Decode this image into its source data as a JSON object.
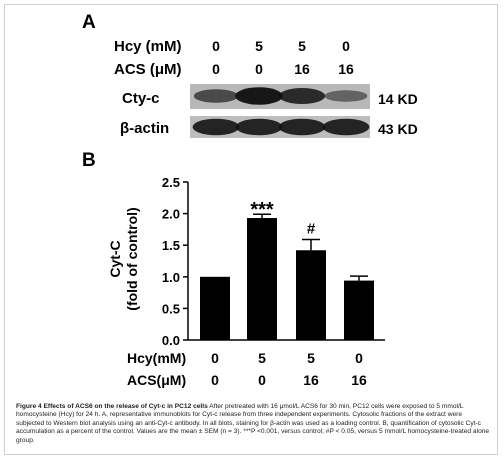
{
  "figure": {
    "panel_a_label": "A",
    "panel_b_label": "B",
    "blot": {
      "row_labels": {
        "hcy": "Hcy (mM)",
        "acs": "ACS (μM)"
      },
      "hcy_values": [
        "0",
        "5",
        "5",
        "0"
      ],
      "acs_values": [
        "0",
        "0",
        "16",
        "16"
      ],
      "bands": [
        {
          "name": "Cty-c",
          "size": "14 KD",
          "intensities": [
            0.55,
            0.95,
            0.8,
            0.35
          ]
        },
        {
          "name": "β-actin",
          "size": "43 KD",
          "intensities": [
            0.85,
            0.85,
            0.85,
            0.85
          ]
        }
      ]
    }
  },
  "chart_data": {
    "type": "bar",
    "categories": [
      "1",
      "2",
      "3",
      "4"
    ],
    "values": [
      1.0,
      1.93,
      1.42,
      0.94
    ],
    "errors": [
      0.0,
      0.06,
      0.17,
      0.07
    ],
    "annotations": [
      "",
      "***",
      "#",
      ""
    ],
    "ylabel_line1": "Cyt-C",
    "ylabel_line2": "(fold of control)",
    "ylim": [
      0.0,
      2.5
    ],
    "yticks": [
      "0.0",
      "0.5",
      "1.0",
      "1.5",
      "2.0",
      "2.5"
    ],
    "x_rows": [
      {
        "label": "Hcy(mM)",
        "values": [
          "0",
          "5",
          "5",
          "0"
        ]
      },
      {
        "label": "ACS(μM)",
        "values": [
          "0",
          "0",
          "16",
          "16"
        ]
      }
    ]
  },
  "caption": {
    "title": "Figure 4 Effects of ACS6 on the release of Cyt-c in PC12 cells",
    "text": "After pretreated with 16 μmol/L ACS6 for 30 min, PC12 cells were exposed to 5 mmol/L homocysteine (Hcy) for 24 h. A, representative immunoblots for Cyt-c release from three independent experiments. Cytosolic fractions of the extract were subjected to Western blot analysis using an anti-Cyt-c antibody. In all blots, staining for β-actin was used as a loading control. B, quantification of cytosolic Cyt-c accumulation as a percent of the control. Values are the mean ± SEM (n = 3). ***P <0.001, versus control; #P < 0.05, versus 5 mmol/L homocysteine-treated alone group."
  },
  "colors": {
    "bar": "#000000",
    "blot_bg": "#b8b8b8",
    "band": "#111111"
  }
}
